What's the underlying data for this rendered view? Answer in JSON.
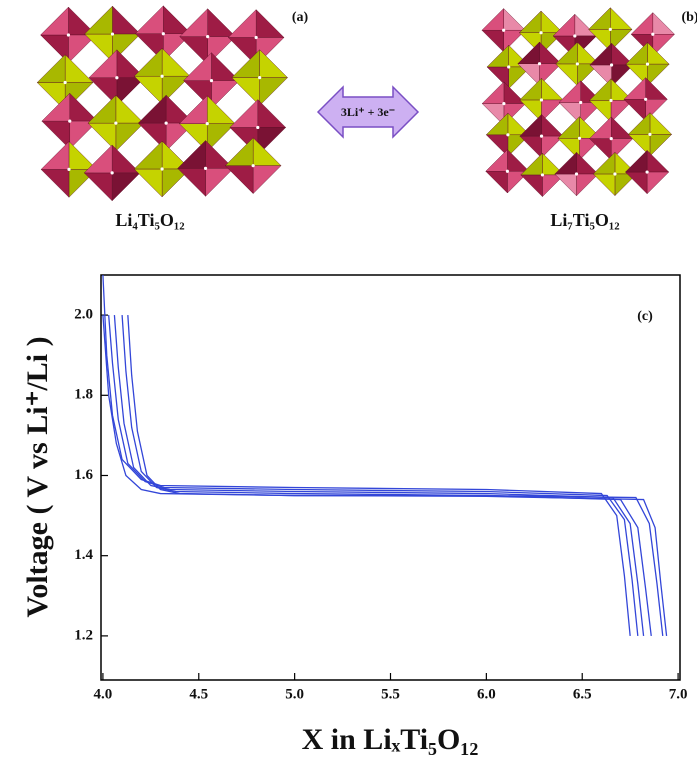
{
  "panels": {
    "a_label": "(a)",
    "b_label": "(b)",
    "a_formula": "Li₄Ti₅O₁₂",
    "b_formula": "Li₇Ti₅O₁₂",
    "reaction": "3Li⁺ + 3e⁻"
  },
  "chart_data": {
    "type": "line",
    "annotation": "(c)",
    "x_label": "X in LiₓTi₅O₁₂",
    "y_label": "Voltage ( V vs Li⁺/Li )",
    "xlim": [
      3.99,
      7.01
    ],
    "ylim": [
      1.09,
      2.1
    ],
    "xticks": [
      {
        "value": 4,
        "label": "4.0"
      },
      {
        "value": 4.5,
        "label": "4.5"
      },
      {
        "value": 5,
        "label": "5.0"
      },
      {
        "value": 5.5,
        "label": "5.5"
      },
      {
        "value": 6,
        "label": "6.0"
      },
      {
        "value": 6.5,
        "label": "6.5"
      },
      {
        "value": 7,
        "label": "7.0"
      }
    ],
    "yticks": [
      1.2,
      1.4,
      1.6,
      1.8,
      {
        "value": 2,
        "label": "2.0"
      }
    ],
    "series": [
      {
        "color": "#3346d8",
        "x": [
          4.0,
          4.02,
          4.05,
          4.1,
          4.2,
          4.3,
          5.0,
          6.0,
          6.6,
          6.68,
          6.72,
          6.75
        ],
        "values": [
          2.1,
          1.9,
          1.75,
          1.64,
          1.59,
          1.575,
          1.57,
          1.565,
          1.555,
          1.5,
          1.35,
          1.2
        ]
      },
      {
        "color": "#3346d8",
        "x": [
          4.03,
          4.05,
          4.08,
          4.13,
          4.22,
          4.32,
          5.0,
          6.0,
          6.63,
          6.72,
          6.76,
          6.79
        ],
        "values": [
          2.0,
          1.88,
          1.74,
          1.63,
          1.585,
          1.57,
          1.565,
          1.56,
          1.55,
          1.49,
          1.34,
          1.2
        ]
      },
      {
        "color": "#3346d8",
        "x": [
          4.06,
          4.08,
          4.11,
          4.16,
          4.25,
          4.35,
          5.0,
          6.0,
          6.66,
          6.75,
          6.79,
          6.82
        ],
        "values": [
          2.0,
          1.87,
          1.73,
          1.62,
          1.575,
          1.565,
          1.56,
          1.555,
          1.545,
          1.48,
          1.33,
          1.2
        ]
      },
      {
        "color": "#3346d8",
        "x": [
          4.1,
          4.12,
          4.15,
          4.2,
          4.28,
          4.38,
          5.0,
          6.0,
          6.7,
          6.79,
          6.83,
          6.86
        ],
        "values": [
          2.0,
          1.86,
          1.72,
          1.61,
          1.57,
          1.56,
          1.555,
          1.55,
          1.54,
          1.47,
          1.32,
          1.2
        ]
      },
      {
        "color": "#3346d8",
        "x": [
          4.13,
          4.15,
          4.18,
          4.23,
          4.3,
          4.4,
          5.0,
          6.0,
          6.78,
          6.85,
          6.89,
          6.92
        ],
        "values": [
          2.0,
          1.85,
          1.71,
          1.6,
          1.565,
          1.555,
          1.55,
          1.55,
          1.545,
          1.48,
          1.33,
          1.2
        ]
      },
      {
        "color": "#3346d8",
        "x": [
          4.0,
          4.03,
          4.07,
          4.12,
          4.2,
          4.3,
          5.0,
          6.0,
          6.82,
          6.88,
          6.91,
          6.94
        ],
        "values": [
          2.0,
          1.8,
          1.68,
          1.6,
          1.565,
          1.555,
          1.55,
          1.548,
          1.54,
          1.47,
          1.33,
          1.2
        ]
      }
    ]
  }
}
